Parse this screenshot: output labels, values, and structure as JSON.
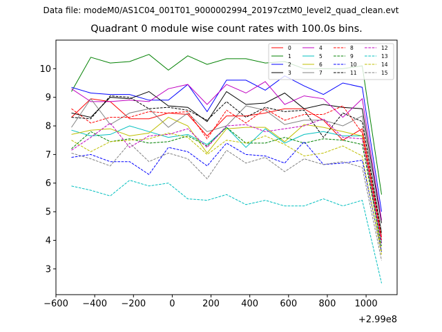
{
  "figure": {
    "suptitle": "Data file: modeM0/AS1C04_001T01_9000002994_20197cztM0_level2_quad_clean.evt"
  },
  "chart_data": {
    "type": "line",
    "title": "Quadrant 0 module wise count rates with 100.0s bins.",
    "xlabel": "",
    "ylabel": "",
    "x_offset_label": "+2.99e8",
    "xlim": [
      -600,
      1160
    ],
    "ylim": [
      2.1,
      11.0
    ],
    "xticks": [
      -600,
      -400,
      -200,
      0,
      200,
      400,
      600,
      800,
      1000
    ],
    "xtick_labels": [
      "−600",
      "−400",
      "−200",
      "0",
      "200",
      "400",
      "600",
      "800",
      "1000"
    ],
    "yticks": [
      3,
      4,
      5,
      6,
      7,
      8,
      9,
      10
    ],
    "ytick_labels": [
      "3",
      "4",
      "5",
      "6",
      "7",
      "8",
      "9",
      "10"
    ],
    "legend_position": "top-right",
    "x": [
      -520,
      -420,
      -320,
      -220,
      -120,
      -20,
      80,
      180,
      280,
      380,
      480,
      580,
      680,
      780,
      880,
      980,
      1080
    ],
    "series": [
      {
        "name": "0",
        "color": "#ff0000",
        "dash": "solid",
        "values": [
          8.3,
          8.95,
          8.85,
          8.25,
          8.25,
          8.45,
          8.4,
          7.65,
          8.35,
          8.35,
          8.45,
          8.6,
          8.6,
          8.2,
          7.5,
          7.9,
          4.1
        ]
      },
      {
        "name": "1",
        "color": "#008000",
        "dash": "solid",
        "values": [
          9.2,
          10.4,
          10.2,
          10.25,
          10.5,
          9.95,
          10.45,
          10.15,
          10.35,
          10.35,
          10.2,
          10.25,
          10.0,
          10.0,
          10.0,
          10.1,
          5.6
        ]
      },
      {
        "name": "2",
        "color": "#0000ff",
        "dash": "solid",
        "values": [
          9.35,
          9.15,
          9.1,
          9.1,
          8.9,
          8.9,
          9.45,
          8.5,
          9.6,
          9.6,
          9.25,
          9.75,
          9.4,
          9.1,
          9.5,
          9.35,
          5.0
        ]
      },
      {
        "name": "3",
        "color": "#000000",
        "dash": "solid",
        "values": [
          8.45,
          8.3,
          9.0,
          8.95,
          9.2,
          8.7,
          8.65,
          8.15,
          9.2,
          8.75,
          8.8,
          9.15,
          8.6,
          8.75,
          8.65,
          8.6,
          4.6
        ]
      },
      {
        "name": "4",
        "color": "#c000c0",
        "dash": "solid",
        "values": [
          9.3,
          8.85,
          8.85,
          8.9,
          8.85,
          9.3,
          9.45,
          8.75,
          9.45,
          9.15,
          9.55,
          8.75,
          9.05,
          8.95,
          8.3,
          8.95,
          4.7
        ]
      },
      {
        "name": "5",
        "color": "#00bfbf",
        "dash": "solid",
        "values": [
          7.85,
          7.65,
          7.7,
          8.0,
          7.8,
          7.6,
          7.7,
          7.35,
          7.95,
          7.25,
          7.9,
          7.4,
          7.7,
          7.8,
          7.65,
          7.65,
          3.9
        ]
      },
      {
        "name": "6",
        "color": "#bfbf00",
        "dash": "solid",
        "values": [
          7.7,
          7.85,
          7.9,
          7.65,
          7.75,
          8.3,
          8.0,
          7.05,
          7.9,
          7.95,
          7.95,
          7.45,
          8.05,
          7.95,
          7.8,
          7.65,
          3.6
        ]
      },
      {
        "name": "7",
        "color": "#808080",
        "dash": "solid",
        "values": [
          7.95,
          8.95,
          8.05,
          8.45,
          8.6,
          7.95,
          8.45,
          7.8,
          8.0,
          8.7,
          8.55,
          8.05,
          8.2,
          8.2,
          8.0,
          8.35,
          4.3
        ]
      },
      {
        "name": "8",
        "color": "#ff0000",
        "dash": "dashed",
        "values": [
          8.6,
          8.1,
          8.3,
          8.3,
          8.5,
          8.45,
          8.5,
          7.55,
          8.55,
          8.1,
          8.6,
          8.2,
          8.4,
          8.4,
          8.7,
          7.75,
          4.0
        ]
      },
      {
        "name": "9",
        "color": "#008000",
        "dash": "dashed",
        "values": [
          7.2,
          7.8,
          7.45,
          7.55,
          7.4,
          7.45,
          7.65,
          7.3,
          7.95,
          7.4,
          7.4,
          7.6,
          7.4,
          7.55,
          7.5,
          7.35,
          3.8
        ]
      },
      {
        "name": "10",
        "color": "#0000ff",
        "dash": "dashed",
        "values": [
          6.9,
          7.0,
          6.75,
          6.75,
          6.3,
          7.25,
          7.1,
          6.6,
          7.4,
          7.0,
          6.95,
          6.7,
          7.45,
          6.65,
          6.7,
          6.8,
          3.6
        ]
      },
      {
        "name": "11",
        "color": "#000000",
        "dash": "dashed",
        "values": [
          8.3,
          8.25,
          9.05,
          9.0,
          8.6,
          8.65,
          8.55,
          8.2,
          8.85,
          8.3,
          8.65,
          8.5,
          8.55,
          7.6,
          8.45,
          8.15,
          4.2
        ]
      },
      {
        "name": "12",
        "color": "#c000c0",
        "dash": "dashed",
        "values": [
          7.15,
          7.6,
          8.1,
          7.25,
          7.65,
          7.7,
          7.9,
          7.25,
          8.0,
          8.05,
          7.8,
          7.9,
          8.0,
          8.25,
          7.6,
          7.55,
          3.9
        ]
      },
      {
        "name": "13",
        "color": "#00bfbf",
        "dash": "dashed",
        "values": [
          5.9,
          5.75,
          5.55,
          6.1,
          5.9,
          6.0,
          5.45,
          5.4,
          5.6,
          5.25,
          5.4,
          5.2,
          5.2,
          5.45,
          5.2,
          5.4,
          2.5
        ]
      },
      {
        "name": "14",
        "color": "#bfbf00",
        "dash": "dashed",
        "values": [
          7.5,
          7.1,
          7.45,
          7.5,
          7.55,
          7.75,
          7.6,
          7.0,
          7.5,
          7.4,
          7.65,
          7.35,
          6.95,
          7.05,
          7.3,
          6.95,
          3.5
        ]
      },
      {
        "name": "15",
        "color": "#808080",
        "dash": "dashed",
        "values": [
          7.05,
          6.85,
          6.6,
          7.4,
          6.75,
          7.05,
          6.85,
          6.15,
          7.15,
          6.7,
          6.9,
          6.4,
          6.85,
          6.65,
          6.75,
          6.55,
          3.3
        ]
      }
    ]
  }
}
